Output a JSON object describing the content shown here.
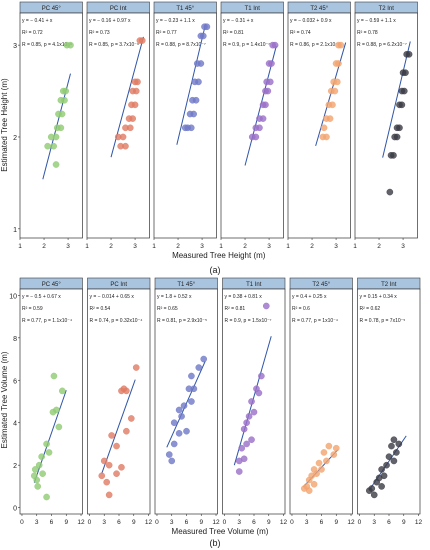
{
  "figure": {
    "caption_a": "(a)",
    "caption_b": "(b)",
    "colors": {
      "strip_fill": "#a9c4df",
      "strip_border": "#3c3c3c",
      "panel_border": "#333333",
      "fit_line": "#2f55a8",
      "PC": "#8fca72",
      "PCint": "#e07b63",
      "T1": "#6f78c7",
      "T1int": "#9a6fc8",
      "T2": "#f2a46f",
      "T2int": "#3b3b45"
    }
  },
  "chart_data": [
    {
      "type": "scatter",
      "title": "",
      "xlabel": "Measured Tree Height (m)",
      "ylabel": "Estimated Tree Height (m)",
      "xlim": [
        1,
        3.6
      ],
      "ylim": [
        0.9,
        3.35
      ],
      "xticks": [
        1,
        2,
        3
      ],
      "yticks": [
        1,
        2,
        3
      ],
      "facets": [
        {
          "strip": "PC 45°",
          "color_key": "PC",
          "eq": "y = − 0.41 + x",
          "r2": "R² = 0.72",
          "stats": "R = 0.85, p = 4.1x10⁻⁶",
          "fit": {
            "intercept": -0.41,
            "slope": 1.0,
            "x": [
              1.95,
              3.1
            ]
          },
          "points": [
            {
              "x": 2.95,
              "y": 3.0
            },
            {
              "x": 3.1,
              "y": 3.0
            },
            {
              "x": 2.8,
              "y": 2.5
            },
            {
              "x": 2.9,
              "y": 2.5
            },
            {
              "x": 2.7,
              "y": 2.4
            },
            {
              "x": 2.85,
              "y": 2.4
            },
            {
              "x": 2.6,
              "y": 2.25
            },
            {
              "x": 2.75,
              "y": 2.25
            },
            {
              "x": 2.55,
              "y": 2.1
            },
            {
              "x": 2.7,
              "y": 2.1
            },
            {
              "x": 2.3,
              "y": 2.0
            },
            {
              "x": 2.5,
              "y": 2.0
            },
            {
              "x": 2.15,
              "y": 1.9
            },
            {
              "x": 2.4,
              "y": 1.9
            },
            {
              "x": 2.5,
              "y": 1.7
            }
          ]
        },
        {
          "strip": "PC Int",
          "color_key": "PCint",
          "eq": "y = − 0.16 + 0.97 x",
          "r2": "R² = 0.73",
          "stats": "R = 0.85, p = 3.7x10⁻⁶",
          "fit": {
            "intercept": -0.16,
            "slope": 0.97,
            "x": [
              2.0,
              3.35
            ]
          },
          "points": [
            {
              "x": 3.2,
              "y": 3.05
            },
            {
              "x": 3.3,
              "y": 3.05
            },
            {
              "x": 3.0,
              "y": 2.6
            },
            {
              "x": 3.1,
              "y": 2.6
            },
            {
              "x": 2.9,
              "y": 2.5
            },
            {
              "x": 3.05,
              "y": 2.5
            },
            {
              "x": 2.85,
              "y": 2.35
            },
            {
              "x": 3.0,
              "y": 2.35
            },
            {
              "x": 2.75,
              "y": 2.2
            },
            {
              "x": 2.9,
              "y": 2.2
            },
            {
              "x": 2.6,
              "y": 2.1
            },
            {
              "x": 2.8,
              "y": 2.1
            },
            {
              "x": 2.3,
              "y": 2.0
            },
            {
              "x": 2.5,
              "y": 2.0
            },
            {
              "x": 2.4,
              "y": 1.9
            },
            {
              "x": 2.6,
              "y": 1.9
            }
          ]
        },
        {
          "strip": "T1 45°",
          "color_key": "T1",
          "eq": "y = − 0.23 + 1.1 x",
          "r2": "R² = 0.77",
          "stats": "R = 0.88, p = 8.7x10⁻⁷",
          "fit": {
            "intercept": -0.23,
            "slope": 1.1,
            "x": [
              1.95,
              3.15
            ]
          },
          "points": [
            {
              "x": 3.1,
              "y": 3.2
            },
            {
              "x": 3.2,
              "y": 3.2
            },
            {
              "x": 2.95,
              "y": 3.1
            },
            {
              "x": 3.05,
              "y": 3.1
            },
            {
              "x": 2.8,
              "y": 2.8
            },
            {
              "x": 2.95,
              "y": 2.8
            },
            {
              "x": 2.7,
              "y": 2.6
            },
            {
              "x": 2.85,
              "y": 2.6
            },
            {
              "x": 2.6,
              "y": 2.4
            },
            {
              "x": 2.75,
              "y": 2.4
            },
            {
              "x": 2.5,
              "y": 2.25
            },
            {
              "x": 2.65,
              "y": 2.25
            },
            {
              "x": 2.4,
              "y": 2.1
            },
            {
              "x": 2.55,
              "y": 2.1
            },
            {
              "x": 2.3,
              "y": 2.1
            }
          ]
        },
        {
          "strip": "T1 Int",
          "color_key": "T1int",
          "eq": "y = − 0.31 + x",
          "r2": "R² = 0.81",
          "stats": "R = 0.9, p = 1.4x10⁻⁷",
          "fit": {
            "intercept": -0.31,
            "slope": 1.0,
            "x": [
              2.0,
              3.3
            ]
          },
          "points": [
            {
              "x": 3.15,
              "y": 3.0
            },
            {
              "x": 3.25,
              "y": 3.0
            },
            {
              "x": 3.0,
              "y": 2.8
            },
            {
              "x": 3.1,
              "y": 2.8
            },
            {
              "x": 2.9,
              "y": 2.6
            },
            {
              "x": 3.05,
              "y": 2.6
            },
            {
              "x": 2.85,
              "y": 2.5
            },
            {
              "x": 2.95,
              "y": 2.5
            },
            {
              "x": 2.75,
              "y": 2.35
            },
            {
              "x": 2.85,
              "y": 2.35
            },
            {
              "x": 2.6,
              "y": 2.2
            },
            {
              "x": 2.75,
              "y": 2.2
            },
            {
              "x": 2.45,
              "y": 2.1
            },
            {
              "x": 2.6,
              "y": 2.1
            },
            {
              "x": 2.3,
              "y": 2.0
            },
            {
              "x": 2.45,
              "y": 2.0
            }
          ]
        },
        {
          "strip": "T2 45°",
          "color_key": "T2",
          "eq": "y = − 0.032 + 0.9 x",
          "r2": "R² = 0.74",
          "stats": "R = 0.86, p = 2.1x10⁻⁶",
          "fit": {
            "intercept": -0.032,
            "slope": 0.9,
            "x": [
              2.15,
              3.4
            ]
          },
          "points": [
            {
              "x": 3.1,
              "y": 3.0
            },
            {
              "x": 3.2,
              "y": 3.0
            },
            {
              "x": 3.0,
              "y": 2.8
            },
            {
              "x": 3.1,
              "y": 2.8
            },
            {
              "x": 2.9,
              "y": 2.6
            },
            {
              "x": 3.05,
              "y": 2.6
            },
            {
              "x": 2.8,
              "y": 2.5
            },
            {
              "x": 2.95,
              "y": 2.5
            },
            {
              "x": 2.7,
              "y": 2.35
            },
            {
              "x": 2.85,
              "y": 2.35
            },
            {
              "x": 2.6,
              "y": 2.2
            },
            {
              "x": 2.75,
              "y": 2.2
            },
            {
              "x": 2.45,
              "y": 2.0
            },
            {
              "x": 2.6,
              "y": 2.0
            },
            {
              "x": 2.5,
              "y": 2.1
            }
          ]
        },
        {
          "strip": "T2 Int",
          "color_key": "T2int",
          "eq": "y = − 0.59 + 1.1 x",
          "r2": "R² = 0.78",
          "stats": "R = 0.88, p = 6.2x10⁻⁷",
          "fit": {
            "intercept": -0.59,
            "slope": 1.1,
            "x": [
              2.15,
              3.3
            ]
          },
          "points": [
            {
              "x": 3.15,
              "y": 2.9
            },
            {
              "x": 3.25,
              "y": 2.9
            },
            {
              "x": 3.0,
              "y": 2.7
            },
            {
              "x": 3.1,
              "y": 2.7
            },
            {
              "x": 2.95,
              "y": 2.5
            },
            {
              "x": 3.05,
              "y": 2.5
            },
            {
              "x": 2.85,
              "y": 2.35
            },
            {
              "x": 2.95,
              "y": 2.35
            },
            {
              "x": 2.75,
              "y": 2.1
            },
            {
              "x": 2.85,
              "y": 2.1
            },
            {
              "x": 2.65,
              "y": 2.0
            },
            {
              "x": 2.75,
              "y": 2.0
            },
            {
              "x": 2.5,
              "y": 1.8
            },
            {
              "x": 2.6,
              "y": 1.8
            },
            {
              "x": 2.45,
              "y": 1.4
            }
          ]
        }
      ]
    },
    {
      "type": "scatter",
      "title": "",
      "xlabel": "Measured Tree Volume (m)",
      "ylabel": "Estimated Tree Volume (m)",
      "xlim": [
        -0.4,
        12.3
      ],
      "ylim": [
        -0.3,
        10.3
      ],
      "xticks": [
        0,
        3,
        6,
        9,
        12
      ],
      "yticks": [
        0,
        2,
        4,
        6,
        8,
        10
      ],
      "facets": [
        {
          "strip": "PC 45°",
          "color_key": "PC",
          "eq": "y = − 0.5 + 0.67 x",
          "r2": "R² = 0.59",
          "stats": "R = 0.77, p = 1.1x10⁻⁴",
          "fit": {
            "intercept": -0.5,
            "slope": 0.67,
            "x": [
              2.5,
              9.0
            ]
          },
          "points": [
            {
              "x": 8.2,
              "y": 5.5
            },
            {
              "x": 6.5,
              "y": 6.2
            },
            {
              "x": 7.0,
              "y": 4.6
            },
            {
              "x": 6.3,
              "y": 4.5
            },
            {
              "x": 7.5,
              "y": 3.8
            },
            {
              "x": 5.0,
              "y": 3.0
            },
            {
              "x": 4.0,
              "y": 2.4
            },
            {
              "x": 5.5,
              "y": 2.6
            },
            {
              "x": 3.5,
              "y": 2.0
            },
            {
              "x": 2.5,
              "y": 1.5
            },
            {
              "x": 3.0,
              "y": 1.3
            },
            {
              "x": 3.2,
              "y": 1.0
            },
            {
              "x": 2.7,
              "y": 1.8
            },
            {
              "x": 4.2,
              "y": 1.6
            },
            {
              "x": 5.0,
              "y": 0.5
            }
          ]
        },
        {
          "strip": "PC Int",
          "color_key": "PCint",
          "eq": "y = − 0.014 + 0.65 x",
          "r2": "R² = 0.54",
          "stats": "R = 0.74, p = 0.32x10⁻⁴",
          "fit": {
            "intercept": -0.014,
            "slope": 0.65,
            "x": [
              2.5,
              9.3
            ]
          },
          "points": [
            {
              "x": 9.5,
              "y": 6.6
            },
            {
              "x": 7.0,
              "y": 5.6
            },
            {
              "x": 7.5,
              "y": 5.5
            },
            {
              "x": 6.5,
              "y": 5.5
            },
            {
              "x": 8.5,
              "y": 4.2
            },
            {
              "x": 7.5,
              "y": 3.6
            },
            {
              "x": 4.5,
              "y": 3.4
            },
            {
              "x": 5.5,
              "y": 2.9
            },
            {
              "x": 3.0,
              "y": 2.2
            },
            {
              "x": 4.0,
              "y": 2.0
            },
            {
              "x": 6.5,
              "y": 1.9
            },
            {
              "x": 5.5,
              "y": 1.6
            },
            {
              "x": 3.5,
              "y": 1.2
            },
            {
              "x": 4.0,
              "y": 0.6
            },
            {
              "x": 2.5,
              "y": 1.5
            }
          ]
        },
        {
          "strip": "T1 45°",
          "color_key": "T1",
          "eq": "y = 1.8 + 0.52 x",
          "r2": "R² = 0.65",
          "stats": "R = 0.81, p = 2.9x10⁻⁵",
          "fit": {
            "intercept": 1.8,
            "slope": 0.52,
            "x": [
              2.0,
              9.8
            ]
          },
          "points": [
            {
              "x": 9.5,
              "y": 7.0
            },
            {
              "x": 8.5,
              "y": 6.6
            },
            {
              "x": 7.0,
              "y": 6.2
            },
            {
              "x": 7.5,
              "y": 5.6
            },
            {
              "x": 6.5,
              "y": 5.6
            },
            {
              "x": 7.0,
              "y": 5.0
            },
            {
              "x": 5.5,
              "y": 4.8
            },
            {
              "x": 4.5,
              "y": 4.6
            },
            {
              "x": 5.0,
              "y": 4.3
            },
            {
              "x": 3.5,
              "y": 4.0
            },
            {
              "x": 4.5,
              "y": 3.5
            },
            {
              "x": 6.0,
              "y": 3.6
            },
            {
              "x": 3.5,
              "y": 3.0
            },
            {
              "x": 2.5,
              "y": 2.5
            },
            {
              "x": 3.0,
              "y": 2.2
            }
          ]
        },
        {
          "strip": "T1 Int",
          "color_key": "T1int",
          "eq": "y = 0.38 + 0.81 x",
          "r2": "R² = 0.81",
          "stats": "R = 0.9, p = 1.5x10⁻⁷",
          "fit": {
            "intercept": 0.38,
            "slope": 0.81,
            "x": [
              2.0,
              9.5
            ]
          },
          "points": [
            {
              "x": 8.5,
              "y": 9.5
            },
            {
              "x": 7.5,
              "y": 6.2
            },
            {
              "x": 6.5,
              "y": 5.6
            },
            {
              "x": 7.0,
              "y": 5.4
            },
            {
              "x": 5.5,
              "y": 5.0
            },
            {
              "x": 6.0,
              "y": 4.5
            },
            {
              "x": 5.0,
              "y": 4.3
            },
            {
              "x": 4.5,
              "y": 4.0
            },
            {
              "x": 4.0,
              "y": 3.7
            },
            {
              "x": 4.5,
              "y": 3.0
            },
            {
              "x": 5.5,
              "y": 3.2
            },
            {
              "x": 3.5,
              "y": 2.8
            },
            {
              "x": 3.0,
              "y": 2.2
            },
            {
              "x": 4.0,
              "y": 2.3
            },
            {
              "x": 3.0,
              "y": 1.7
            }
          ]
        },
        {
          "strip": "T2 45°",
          "color_key": "T2",
          "eq": "y = 0.4 + 0.25 x",
          "r2": "R² = 0.6",
          "stats": "R = 0.77, p = 1x10⁻⁴",
          "fit": {
            "intercept": 0.4,
            "slope": 0.25,
            "x": [
              2.3,
              9.3
            ]
          },
          "points": [
            {
              "x": 9.0,
              "y": 2.8
            },
            {
              "x": 7.5,
              "y": 2.9
            },
            {
              "x": 8.5,
              "y": 2.5
            },
            {
              "x": 6.5,
              "y": 2.6
            },
            {
              "x": 7.0,
              "y": 2.2
            },
            {
              "x": 5.5,
              "y": 2.1
            },
            {
              "x": 6.0,
              "y": 1.8
            },
            {
              "x": 5.0,
              "y": 1.6
            },
            {
              "x": 4.5,
              "y": 1.8
            },
            {
              "x": 4.0,
              "y": 1.5
            },
            {
              "x": 3.5,
              "y": 1.3
            },
            {
              "x": 4.5,
              "y": 1.1
            },
            {
              "x": 3.0,
              "y": 1.0
            },
            {
              "x": 2.5,
              "y": 0.9
            },
            {
              "x": 3.5,
              "y": 0.8
            }
          ]
        },
        {
          "strip": "T2 Int",
          "color_key": "T2int",
          "eq": "y = 0.15 + 0.34 x",
          "r2": "R² = 0.62",
          "stats": "R = 0.78, p = 7x10⁻⁵",
          "fit": {
            "intercept": 0.15,
            "slope": 0.34,
            "x": [
              2.0,
              9.5
            ]
          },
          "points": [
            {
              "x": 7.0,
              "y": 3.2
            },
            {
              "x": 8.0,
              "y": 3.0
            },
            {
              "x": 6.5,
              "y": 2.9
            },
            {
              "x": 7.5,
              "y": 2.6
            },
            {
              "x": 6.0,
              "y": 2.4
            },
            {
              "x": 7.0,
              "y": 2.2
            },
            {
              "x": 5.5,
              "y": 2.0
            },
            {
              "x": 4.5,
              "y": 1.8
            },
            {
              "x": 5.0,
              "y": 1.5
            },
            {
              "x": 4.0,
              "y": 1.4
            },
            {
              "x": 3.5,
              "y": 1.2
            },
            {
              "x": 4.5,
              "y": 1.0
            },
            {
              "x": 2.5,
              "y": 0.9
            },
            {
              "x": 3.0,
              "y": 0.6
            },
            {
              "x": 2.0,
              "y": 0.8
            }
          ]
        }
      ]
    }
  ]
}
